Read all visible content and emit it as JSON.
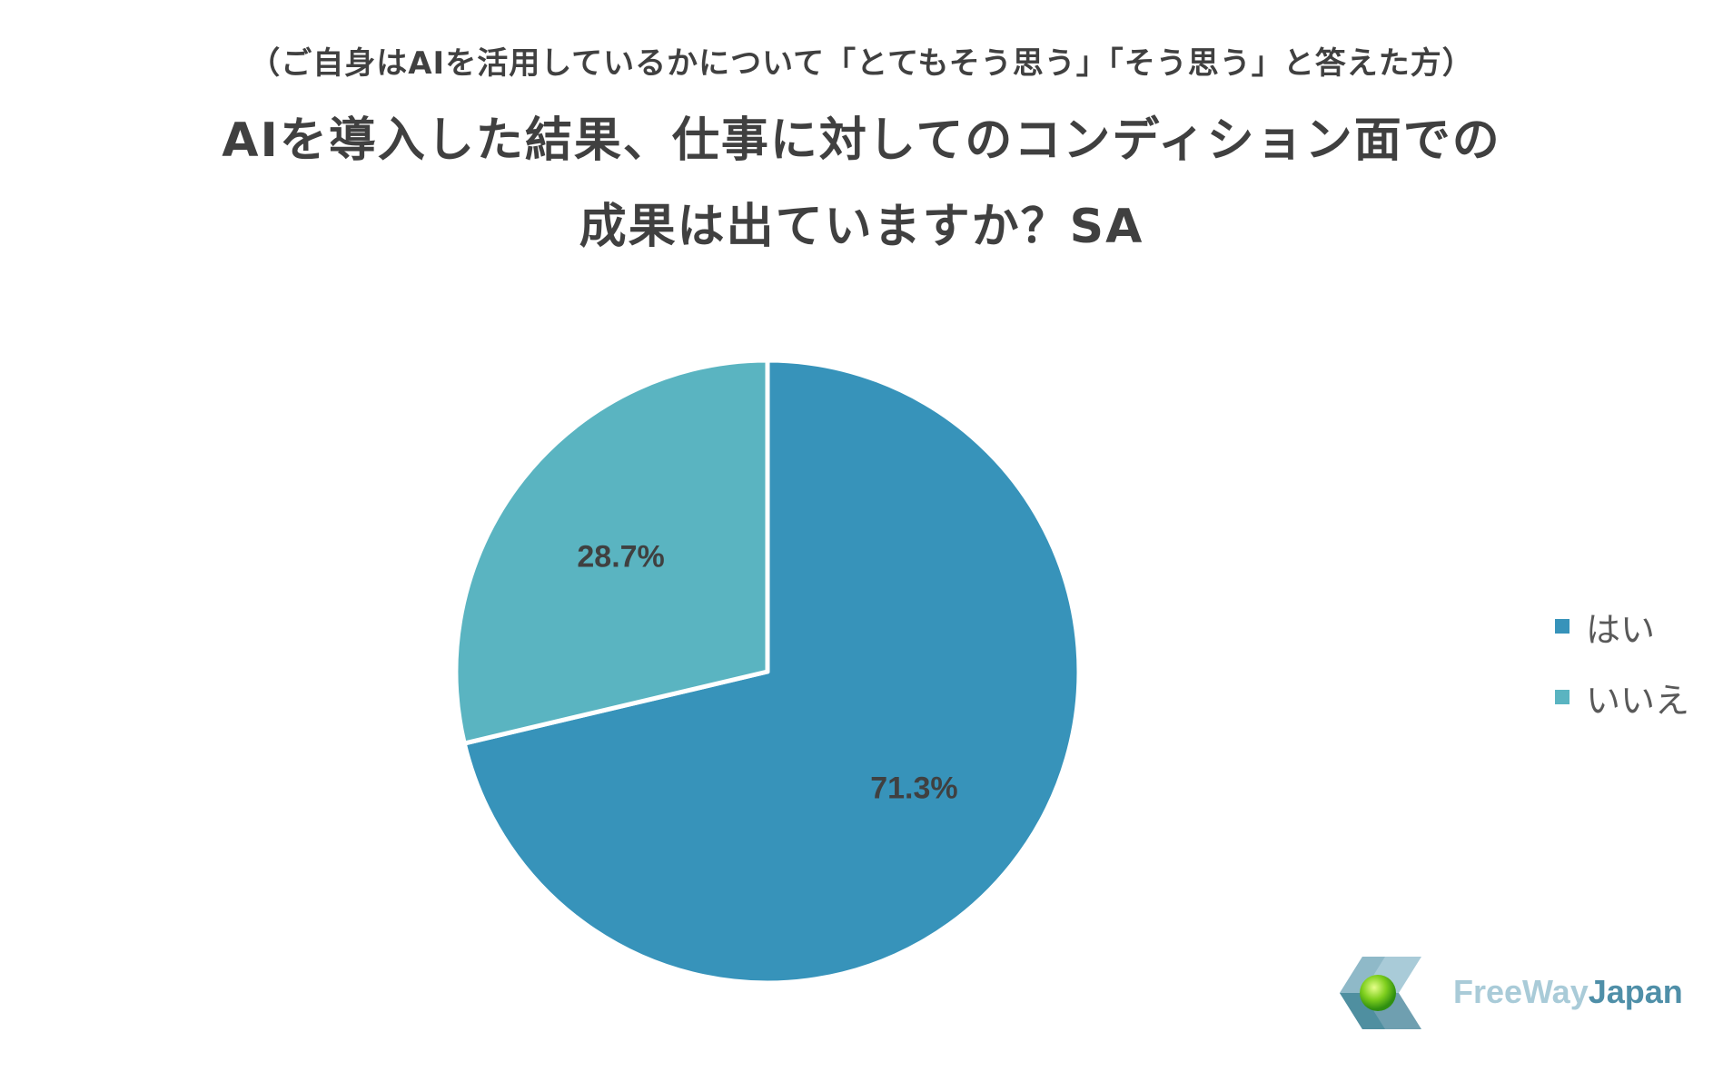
{
  "header": {
    "subtitle": "（ご自身はAIを活用しているかについて「とてもそう思う」「そう思う」と答えた方）",
    "title_line1": "AIを導入した結果、仕事に対してのコンディション面での",
    "title_line2": "成果は出ていますか？SA"
  },
  "chart_data": {
    "type": "pie",
    "categories": [
      "はい",
      "いいえ"
    ],
    "values": [
      71.3,
      28.7
    ],
    "labels": [
      "71.3%",
      "28.7%"
    ],
    "colors": [
      "#3793ba",
      "#5ab4c1"
    ],
    "start": "12 o'clock",
    "direction": "clockwise",
    "legend": "right"
  },
  "legend": {
    "items": [
      {
        "label": "はい",
        "color": "#3793ba"
      },
      {
        "label": "いいえ",
        "color": "#5ab4c1"
      }
    ]
  },
  "logo": {
    "text_part1": "FreeWay",
    "text_part2": "Japan"
  }
}
